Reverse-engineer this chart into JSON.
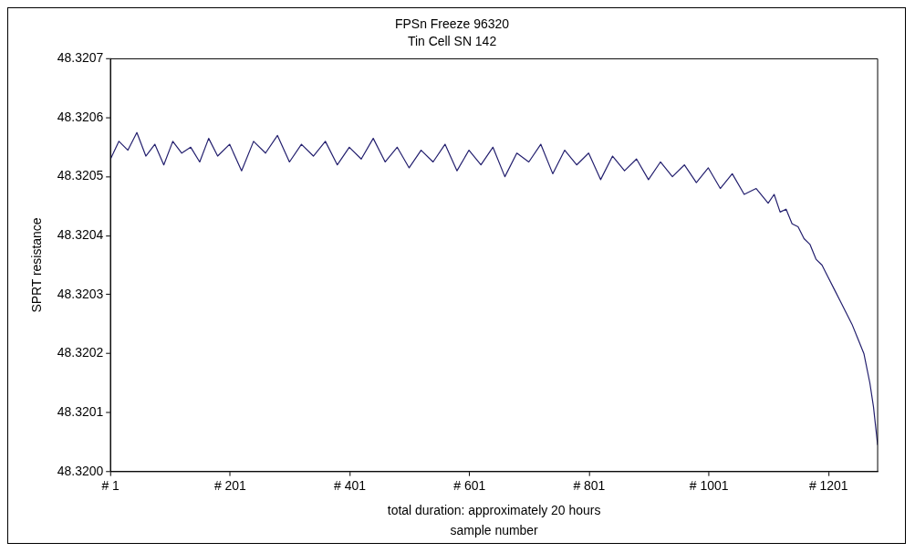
{
  "chart_data": {
    "type": "line",
    "title": "FPSn Freeze 96320",
    "subtitle": "Tin Cell SN 142",
    "xlabel": "sample number",
    "ylabel": "SPRT resistance",
    "annotations": [
      "total duration: approximately 20 hours"
    ],
    "xlim": [
      1,
      1283
    ],
    "xticks": [
      {
        "value": 1,
        "label": "# 1"
      },
      {
        "value": 201,
        "label": "# 201"
      },
      {
        "value": 401,
        "label": "# 401"
      },
      {
        "value": 601,
        "label": "# 601"
      },
      {
        "value": 801,
        "label": "# 801"
      },
      {
        "value": 1001,
        "label": "# 1001"
      },
      {
        "value": 1201,
        "label": "# 1201"
      }
    ],
    "ylim": [
      48.32,
      48.3207
    ],
    "yticks": [
      {
        "value": 48.32,
        "label": "48.3200"
      },
      {
        "value": 48.3201,
        "label": "48.3201"
      },
      {
        "value": 48.3202,
        "label": "48.3202"
      },
      {
        "value": 48.3203,
        "label": "48.3203"
      },
      {
        "value": 48.3204,
        "label": "48.3204"
      },
      {
        "value": 48.3205,
        "label": "48.3205"
      },
      {
        "value": 48.3206,
        "label": "48.3206"
      },
      {
        "value": 48.3207,
        "label": "48.3207"
      }
    ],
    "grid": false,
    "legend": false,
    "marker": "none",
    "line_style": "solid",
    "series": [
      {
        "color": "#231f6e",
        "x": [
          1,
          15,
          30,
          45,
          60,
          75,
          90,
          105,
          120,
          135,
          150,
          165,
          180,
          200,
          220,
          240,
          260,
          280,
          300,
          320,
          340,
          360,
          380,
          400,
          420,
          440,
          460,
          480,
          500,
          520,
          540,
          560,
          580,
          600,
          620,
          640,
          660,
          680,
          700,
          720,
          740,
          760,
          780,
          800,
          820,
          840,
          860,
          880,
          900,
          920,
          940,
          960,
          980,
          1000,
          1020,
          1040,
          1060,
          1080,
          1100,
          1110,
          1120,
          1130,
          1140,
          1150,
          1160,
          1170,
          1180,
          1190,
          1200,
          1210,
          1220,
          1230,
          1240,
          1250,
          1260,
          1270,
          1276,
          1283
        ],
        "values": [
          48.32053,
          48.32056,
          48.320545,
          48.320575,
          48.320535,
          48.320555,
          48.32052,
          48.32056,
          48.32054,
          48.32055,
          48.320525,
          48.320565,
          48.320535,
          48.320555,
          48.32051,
          48.32056,
          48.32054,
          48.32057,
          48.320525,
          48.320555,
          48.320535,
          48.32056,
          48.32052,
          48.32055,
          48.32053,
          48.320565,
          48.320525,
          48.32055,
          48.320515,
          48.320545,
          48.320525,
          48.320555,
          48.32051,
          48.320545,
          48.32052,
          48.32055,
          48.3205,
          48.32054,
          48.320525,
          48.320555,
          48.320505,
          48.320545,
          48.32052,
          48.32054,
          48.320495,
          48.320535,
          48.32051,
          48.32053,
          48.320495,
          48.320525,
          48.3205,
          48.32052,
          48.32049,
          48.320515,
          48.32048,
          48.320505,
          48.32047,
          48.32048,
          48.320455,
          48.32047,
          48.32044,
          48.320445,
          48.32042,
          48.320415,
          48.320395,
          48.320385,
          48.32036,
          48.32035,
          48.32033,
          48.32031,
          48.32029,
          48.32027,
          48.32025,
          48.320225,
          48.3202,
          48.32015,
          48.32011,
          48.320045
        ]
      }
    ]
  }
}
